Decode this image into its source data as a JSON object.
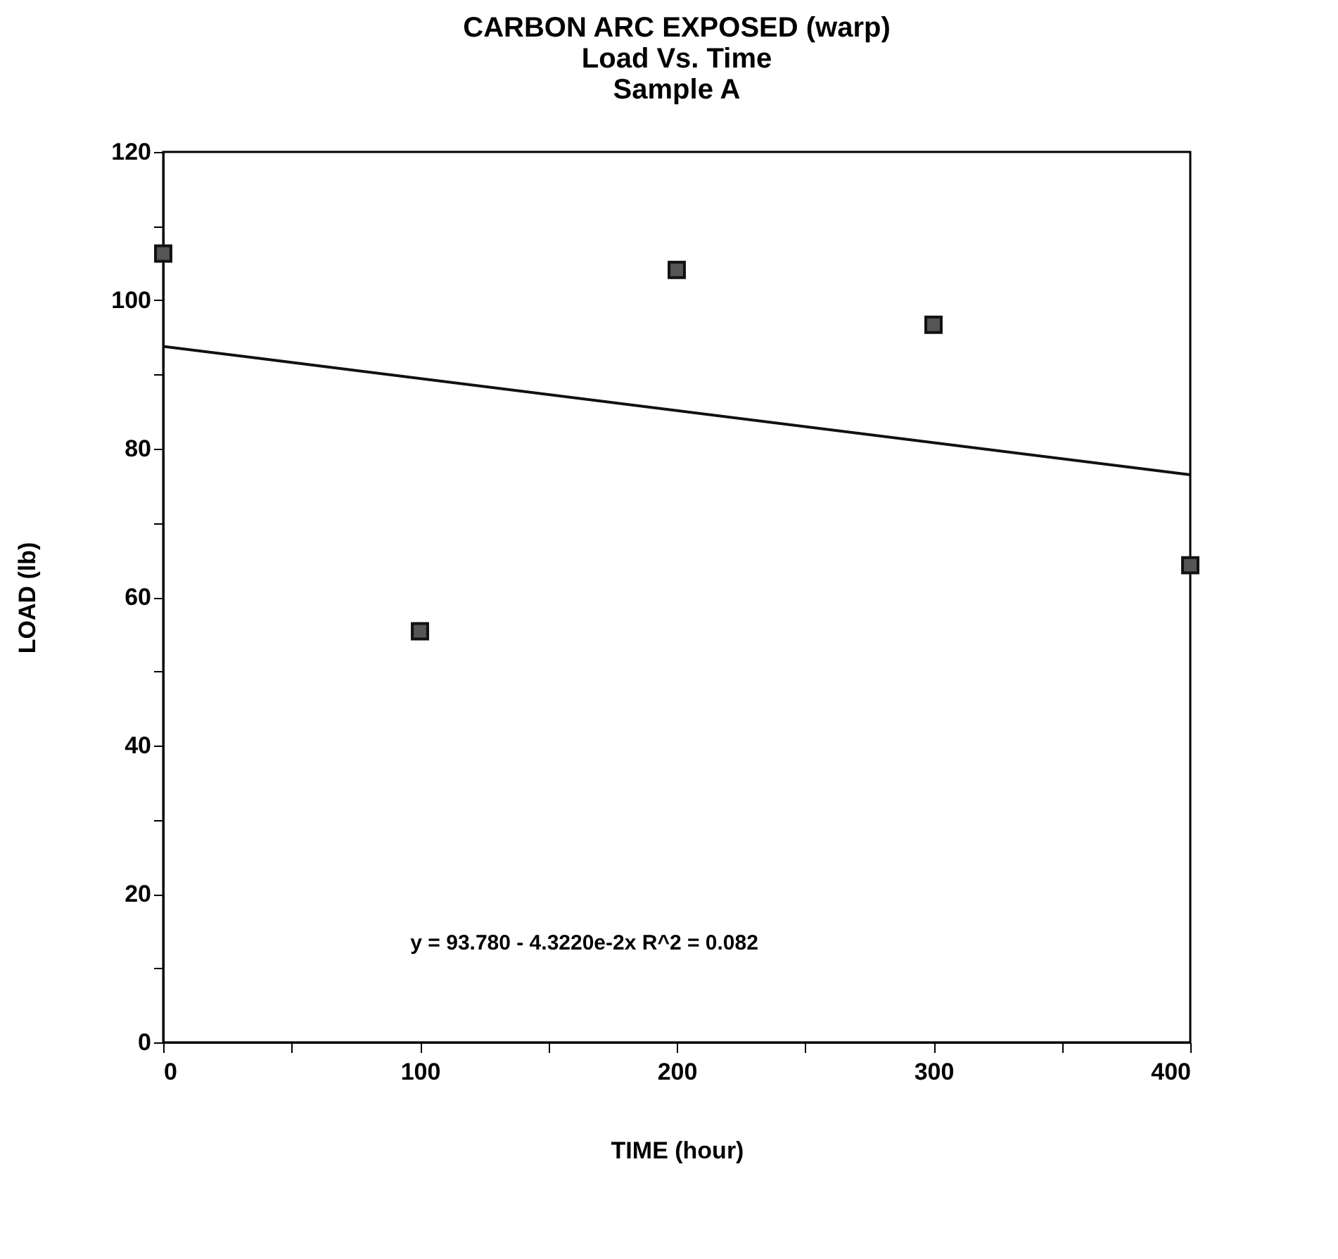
{
  "chart_data": {
    "type": "scatter",
    "title": "CARBON ARC EXPOSED (warp)\nLoad Vs. Time\nSample A",
    "xlabel": "TIME (hour)",
    "ylabel": "LOAD  (lb)",
    "x": [
      0,
      100,
      200,
      300,
      400
    ],
    "series": [
      {
        "color": "#555555",
        "values": [
          106.3,
          55.4,
          104.1,
          96.7,
          64.3
        ]
      },
      {
        "type": "line",
        "color": "#111111",
        "x": [
          0,
          400
        ],
        "values": [
          93.8,
          76.5
        ],
        "marker": "none"
      }
    ],
    "marker": "square",
    "grid": false,
    "xlim": [
      0,
      400
    ],
    "xticks": [
      0,
      {
        "value": 50,
        "label": null
      },
      100,
      {
        "value": 150,
        "label": null
      },
      200,
      {
        "value": 250,
        "label": null
      },
      300,
      {
        "value": 350,
        "label": null
      },
      400
    ],
    "ylim": [
      0,
      120
    ],
    "yticks": [
      0,
      {
        "value": 10,
        "label": null
      },
      20,
      {
        "value": 30,
        "label": null
      },
      40,
      {
        "value": 50,
        "label": null
      },
      60,
      {
        "value": 70,
        "label": null
      },
      80,
      {
        "value": 90,
        "label": null
      },
      100,
      {
        "value": 110,
        "label": null
      },
      120
    ],
    "annotations": [
      "y = 93.780 - 4.3220e-2x    R^2 = 0.082"
    ]
  }
}
